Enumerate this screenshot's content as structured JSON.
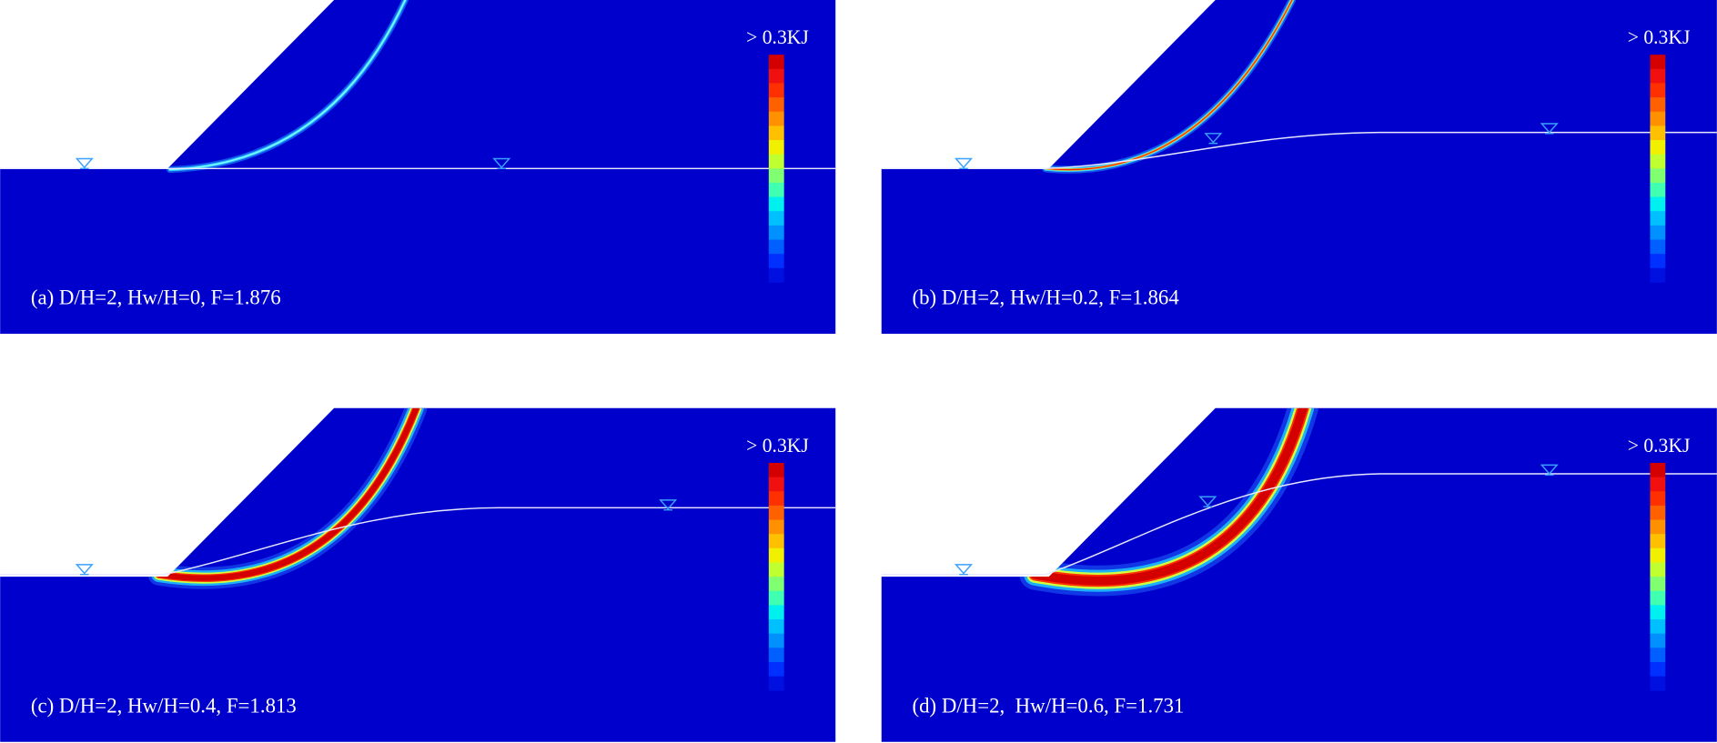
{
  "panels": [
    {
      "label": "(a) D/H=2, Hw/H=0, F=1.876",
      "colorbar_label": "> 0.3KJ"
    },
    {
      "label": "(b) D/H=2, Hw/H=0.2, F=1.864",
      "colorbar_label": "> 0.3KJ"
    },
    {
      "label": "(c) D/H=2, Hw/H=0.4, F=1.813",
      "colorbar_label": "> 0.3KJ"
    },
    {
      "label": "(d) D/H=2,  Hw/H=0.6, F=1.731",
      "colorbar_label": "> 0.3KJ"
    }
  ]
}
